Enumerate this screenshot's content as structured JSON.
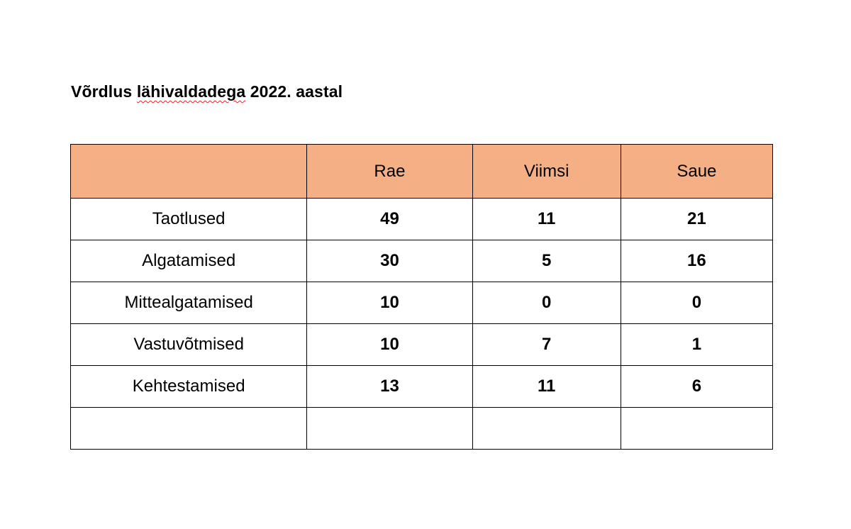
{
  "title": {
    "before": "Võrdlus ",
    "underlined": "lähivaldadega",
    "after": " 2022. aastal"
  },
  "table": {
    "headers": [
      "",
      "Rae",
      "Viimsi",
      "Saue"
    ],
    "rows": [
      {
        "label": "Taotlused",
        "rae": "49",
        "viimsi": "11",
        "saue": "21"
      },
      {
        "label": "Algatamised",
        "rae": "30",
        "viimsi": "5",
        "saue": "16"
      },
      {
        "label": "Mittealgatamised",
        "rae": "10",
        "viimsi": "0",
        "saue": "0"
      },
      {
        "label": "Vastuvõtmised",
        "rae": "10",
        "viimsi": "7",
        "saue": "1"
      },
      {
        "label": "Kehtestamised",
        "rae": "13",
        "viimsi": "11",
        "saue": "6"
      },
      {
        "label": "",
        "rae": "",
        "viimsi": "",
        "saue": ""
      }
    ]
  }
}
